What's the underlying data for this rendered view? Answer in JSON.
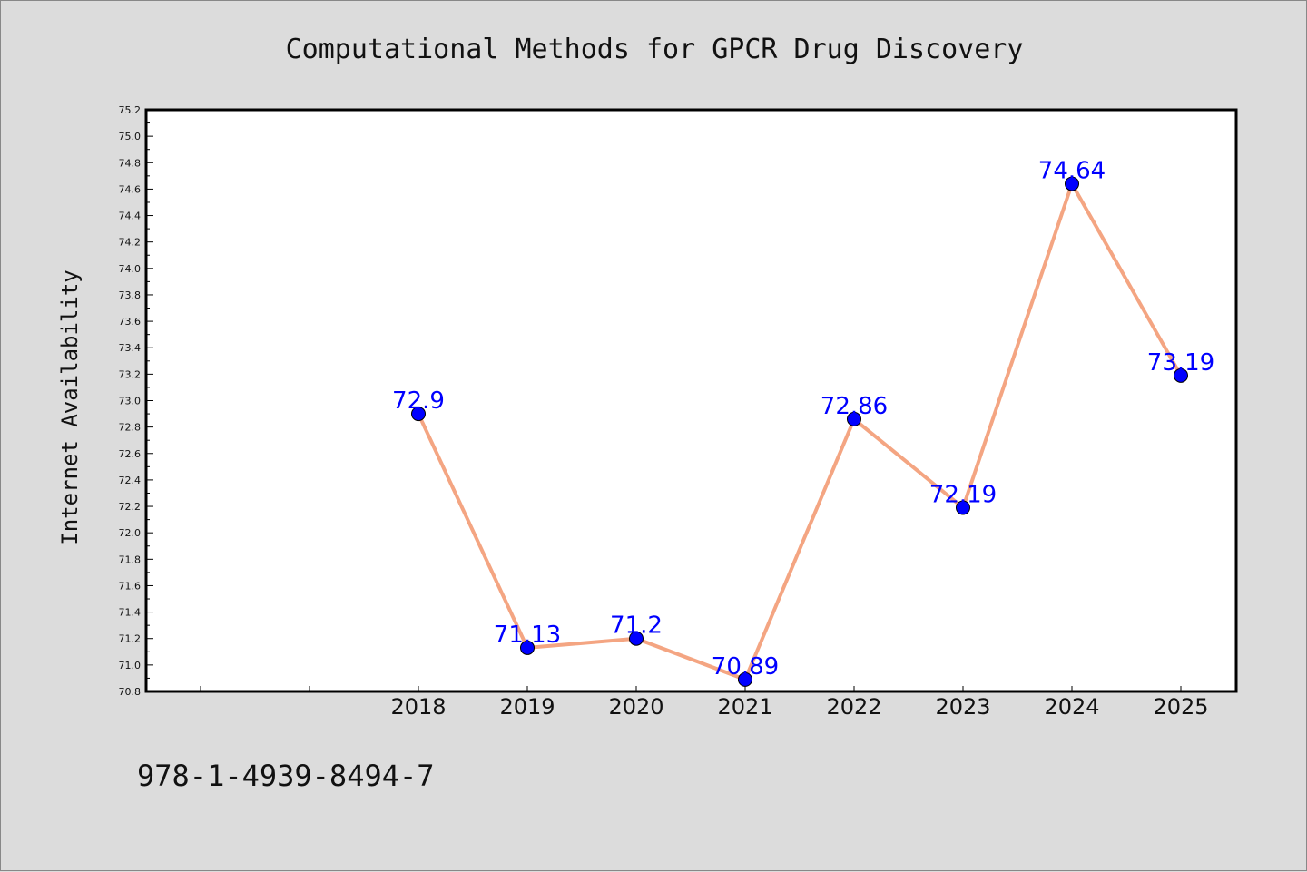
{
  "chart_data": {
    "type": "line",
    "title": "Computational Methods for GPCR Drug Discovery",
    "xlabel": "",
    "ylabel": "Internet Availability",
    "categories": [
      "2018",
      "2019",
      "2020",
      "2021",
      "2022",
      "2023",
      "2024",
      "2025"
    ],
    "series": [
      {
        "values": [
          72.9,
          71.13,
          71.2,
          70.89,
          72.86,
          72.19,
          74.64,
          73.19
        ],
        "data_labels": [
          "72.9",
          "71.13",
          "71.2",
          "70.89",
          "72.86",
          "72.19",
          "74.64",
          "73.19"
        ]
      }
    ],
    "ylim": [
      70.8,
      75.2
    ],
    "yticks": [
      "70.8",
      "71.0",
      "71.2",
      "71.4",
      "71.6",
      "71.8",
      "72.0",
      "72.2",
      "72.4",
      "72.6",
      "72.8",
      "73.0",
      "73.2",
      "73.4",
      "73.6",
      "73.8",
      "74.0",
      "74.2",
      "74.4",
      "74.6",
      "74.8",
      "75.0",
      "75.2"
    ],
    "grid": false,
    "line_color": "#f4a582",
    "marker_color": "#0000ff",
    "label_color": "#0000ff"
  },
  "footer": {
    "isbn": "978-1-4939-8494-7"
  }
}
